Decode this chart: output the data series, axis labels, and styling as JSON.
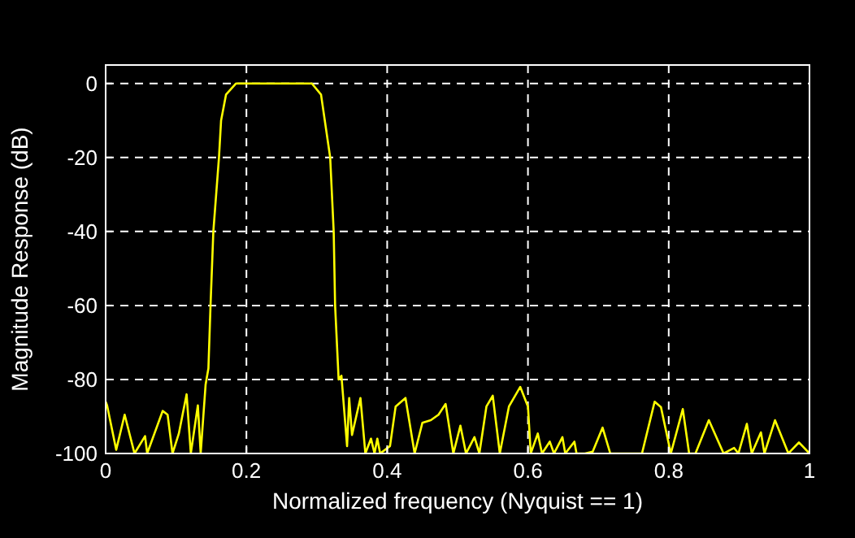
{
  "chart_data": {
    "type": "line",
    "xlabel": "Normalized frequency (Nyquist == 1)",
    "ylabel": "Magnitude Response (dB)",
    "xlim": [
      0,
      1
    ],
    "ylim": [
      -100,
      5
    ],
    "xticks": [
      0,
      0.2,
      0.4,
      0.6,
      0.8,
      1
    ],
    "yticks": [
      -100,
      -80,
      -60,
      -40,
      -20,
      0
    ],
    "grid": true,
    "series": [
      {
        "color": "#ffff00",
        "x": [
          0,
          0.002,
          0.015,
          0.027,
          0.041,
          0.056,
          0.059,
          0.081,
          0.088,
          0.095,
          0.104,
          0.115,
          0.121,
          0.131,
          0.135,
          0.142,
          0.146,
          0.149,
          0.153,
          0.161,
          0.164,
          0.171,
          0.185,
          0.293,
          0.306,
          0.319,
          0.324,
          0.326,
          0.331,
          0.335,
          0.343,
          0.346,
          0.35,
          0.362,
          0.369,
          0.377,
          0.382,
          0.386,
          0.39,
          0.404,
          0.412,
          0.426,
          0.439,
          0.45,
          0.462,
          0.473,
          0.483,
          0.494,
          0.504,
          0.512,
          0.524,
          0.531,
          0.541,
          0.55,
          0.56,
          0.573,
          0.589,
          0.6,
          0.604,
          0.614,
          0.62,
          0.631,
          0.637,
          0.649,
          0.653,
          0.666,
          0.669,
          0.681,
          0.692,
          0.706,
          0.717,
          0.762,
          0.78,
          0.789,
          0.803,
          0.82,
          0.829,
          0.838,
          0.857,
          0.878,
          0.893,
          0.899,
          0.911,
          0.918,
          0.931,
          0.936,
          0.951,
          0.97,
          0.985,
          1
        ],
        "values": [
          -86,
          -87,
          -99,
          -89.5,
          -100,
          -95.3,
          -100,
          -88.5,
          -89.5,
          -100,
          -94.6,
          -84,
          -100,
          -87,
          -100,
          -81.4,
          -77,
          -60,
          -40,
          -20,
          -10,
          -3,
          0,
          0,
          -3,
          -20,
          -40,
          -60,
          -80,
          -79,
          -98,
          -85,
          -95,
          -85,
          -100,
          -96,
          -100,
          -96,
          -100,
          -98,
          -87.3,
          -85,
          -100,
          -91.7,
          -91,
          -89.5,
          -86.6,
          -100,
          -92.5,
          -100,
          -95.6,
          -100,
          -87.3,
          -84.4,
          -100,
          -87.3,
          -82,
          -87.3,
          -100,
          -94.6,
          -100,
          -96.8,
          -100,
          -95.6,
          -100,
          -96.8,
          -100,
          -100,
          -99.5,
          -93,
          -100,
          -100,
          -86,
          -87.5,
          -100,
          -88,
          -100,
          -100,
          -91,
          -100,
          -98.5,
          -100,
          -92,
          -100,
          -94.3,
          -100,
          -91,
          -100,
          -97,
          -100
        ]
      }
    ]
  }
}
